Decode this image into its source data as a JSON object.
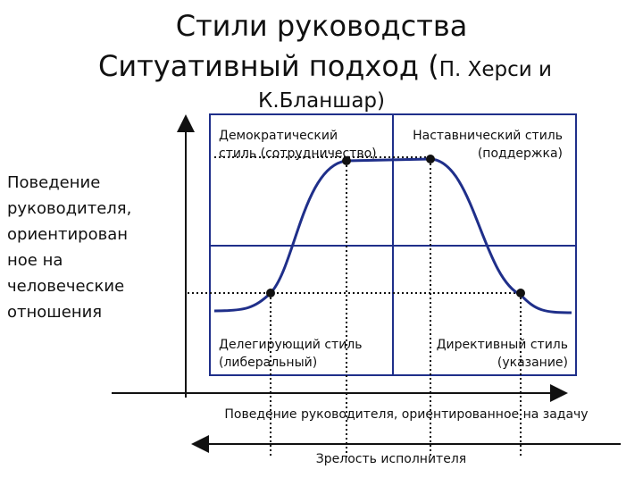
{
  "title": {
    "line1": "Стили руководства",
    "line2": "Ситуативный подход (",
    "line2_small": "П. Херси и",
    "line3": "К.Бланшар)"
  },
  "y_axis_label": [
    "Поведение",
    "руководителя,",
    "ориентирован",
    "ное на",
    "человеческие",
    "отношения"
  ],
  "x_axis_label": "Поведение руководителя, ориентированное на задачу",
  "maturity_label": "Зрелость исполнителя",
  "quadrants": [
    {
      "line1": "Демократический",
      "line2": "стиль (сотрудничество)"
    },
    {
      "line1": "Наставнический стиль",
      "line2": "(поддержка)"
    },
    {
      "line1": "Делегирующий стиль",
      "line2": "(либеральный)"
    },
    {
      "line1": "Директивный стиль",
      "line2": "(указание)"
    }
  ]
}
